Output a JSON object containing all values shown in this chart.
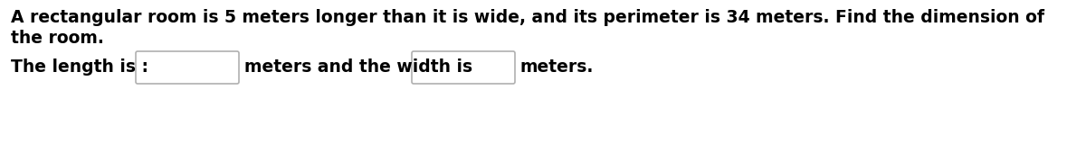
{
  "line1": "A rectangular room is 5 meters longer than it is wide, and its perimeter is 34 meters. Find the dimension of",
  "line2": "the room.",
  "label_text": "The length is :",
  "middle_text": "meters and the width is",
  "end_text": "meters.",
  "font_family": "DejaVu Sans",
  "font_size": 13.5,
  "text_color": "#000000",
  "background_color": "#ffffff",
  "box_fill": "#ffffff",
  "box_edge": "#b0b0b0",
  "fig_width": 12.0,
  "fig_height": 1.6,
  "dpi": 100
}
